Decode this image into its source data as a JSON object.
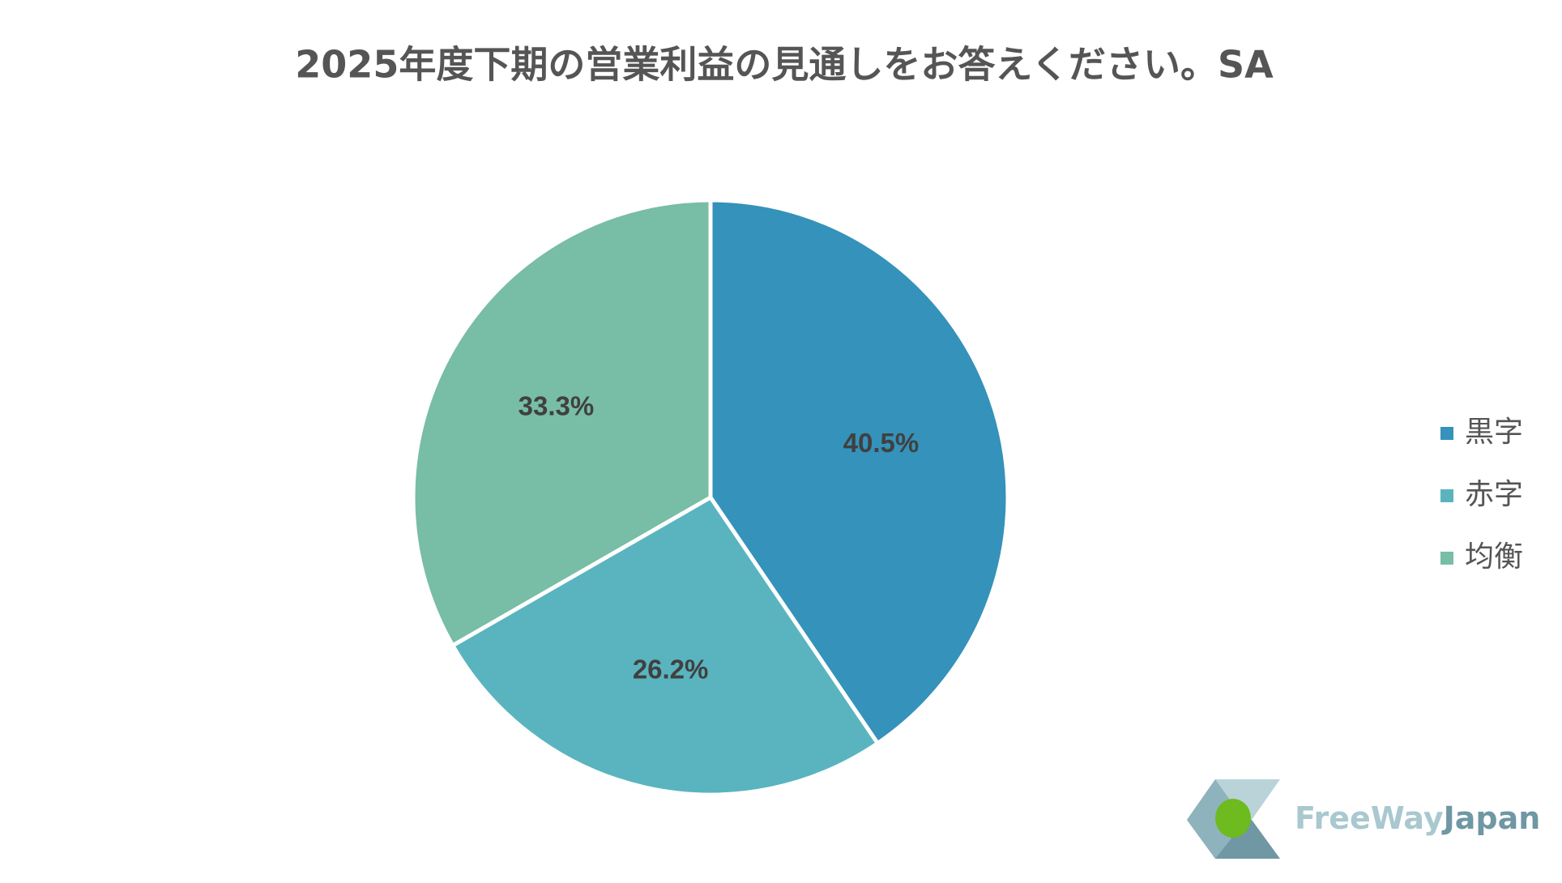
{
  "chart_data": {
    "type": "pie",
    "title": "2025年度下期の営業利益の見通しをお答えください。SA",
    "categories": [
      "黒字",
      "赤字",
      "均衡"
    ],
    "values": [
      40.5,
      26.2,
      33.3
    ],
    "value_labels": [
      "40.5%",
      "26.2%",
      "33.3%"
    ],
    "colors": [
      "#3592ba",
      "#59b4bf",
      "#78bda6"
    ],
    "legend": "right"
  },
  "logo": {
    "text_light": "FreeWay",
    "text_dark": "Japan"
  }
}
